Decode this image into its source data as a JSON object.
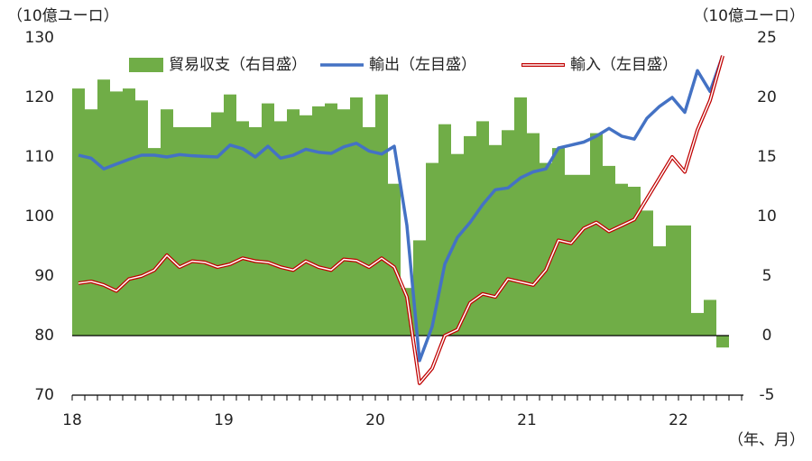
{
  "chart_data": {
    "type": "combo",
    "y_unit_left": "（10億ユーロ）",
    "y_unit_right": "（10億ユーロ）",
    "x_unit": "（年、月）",
    "categories": [
      "18",
      null,
      null,
      null,
      null,
      null,
      null,
      null,
      null,
      null,
      null,
      null,
      "19",
      null,
      null,
      null,
      null,
      null,
      null,
      null,
      null,
      null,
      null,
      null,
      "20",
      null,
      null,
      null,
      null,
      null,
      null,
      null,
      null,
      null,
      null,
      null,
      "21",
      null,
      null,
      null,
      null,
      null,
      null,
      null,
      null,
      null,
      null,
      null,
      "22",
      null,
      null,
      null
    ],
    "series": [
      {
        "name": "貿易収支（右目盛）",
        "kind": "bar",
        "axis": "y2",
        "color": "#70ad47",
        "values": [
          20.75,
          19,
          21.5,
          20.5,
          20.75,
          19.75,
          15.75,
          19,
          17.5,
          17.5,
          17.5,
          18.75,
          20.25,
          18,
          17.5,
          19.5,
          18,
          19,
          18.5,
          19.25,
          19.5,
          19,
          20,
          17.5,
          20.25,
          12.75,
          4,
          8,
          14.5,
          17.75,
          15.25,
          16.75,
          18,
          16,
          17.25,
          20,
          17,
          14.5,
          15.75,
          13.5,
          13.5,
          17,
          14.25,
          12.75,
          12.5,
          10.5,
          7.5,
          9.25,
          9.25,
          1.9,
          3,
          -1
        ]
      },
      {
        "name": "輸出（左目盛）",
        "kind": "line",
        "color": "#4472c4",
        "values": [
          110.3,
          109.8,
          108.0,
          108.8,
          109.6,
          110.3,
          110.3,
          110.0,
          110.4,
          110.2,
          110.1,
          110.0,
          112.0,
          111.4,
          110.0,
          111.8,
          109.8,
          110.3,
          111.3,
          110.8,
          110.6,
          111.7,
          112.3,
          111.0,
          110.5,
          111.8,
          98.5,
          75.8,
          81.5,
          92,
          96.5,
          99,
          102,
          104.5,
          104.8,
          106.5,
          107.5,
          108.0,
          111.5,
          112.0,
          112.5,
          113.5,
          114.8,
          113.5,
          113.0,
          116.5,
          118.5,
          120.0,
          117.5,
          124.5,
          121.0,
          127.0
        ]
      },
      {
        "name": "輸入（左目盛）",
        "kind": "double-line",
        "color": "#c00000",
        "values": [
          88.8,
          89.1,
          88.5,
          87.5,
          89.5,
          90,
          91,
          93.5,
          91.5,
          92.5,
          92.3,
          91.5,
          92,
          93,
          92.5,
          92.3,
          91.5,
          91,
          92.5,
          91.5,
          91,
          92.8,
          92.6,
          91.5,
          93,
          91.5,
          86.5,
          72,
          74.5,
          80,
          81,
          85.5,
          87,
          86.5,
          89.5,
          89,
          88.5,
          91,
          96,
          95.5,
          98,
          99,
          97.5,
          98.5,
          99.5,
          103,
          106.5,
          110,
          107.5,
          114.5,
          119.5,
          127.0
        ]
      }
    ],
    "ylim": [
      70,
      130
    ],
    "yticks": [
      70,
      80,
      90,
      100,
      110,
      120,
      130
    ],
    "y2lim": [
      -5,
      25
    ],
    "y2ticks": [
      -5,
      0,
      5,
      10,
      15,
      20,
      25
    ],
    "grid": false,
    "legend": "top"
  }
}
